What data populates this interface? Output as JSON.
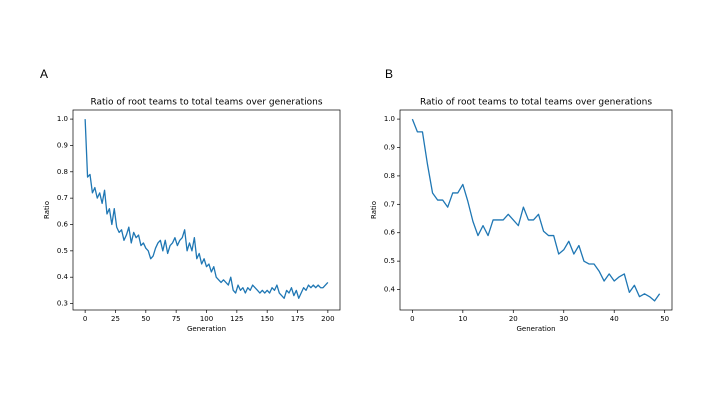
{
  "chart_data": [
    {
      "type": "line",
      "panel_label": "A",
      "title": "Ratio of root teams to total teams over generations",
      "x_label": "Generation",
      "y_label": "Ratio",
      "grid": false,
      "x": [
        0,
        2,
        4,
        6,
        8,
        10,
        12,
        14,
        16,
        18,
        20,
        22,
        24,
        26,
        28,
        30,
        32,
        34,
        36,
        38,
        40,
        42,
        44,
        46,
        48,
        50,
        52,
        54,
        56,
        58,
        60,
        62,
        64,
        66,
        68,
        70,
        72,
        74,
        76,
        78,
        80,
        82,
        84,
        86,
        88,
        90,
        92,
        94,
        96,
        98,
        100,
        102,
        104,
        106,
        108,
        110,
        112,
        114,
        116,
        118,
        120,
        122,
        124,
        126,
        128,
        130,
        132,
        134,
        136,
        138,
        140,
        142,
        144,
        146,
        148,
        150,
        152,
        154,
        156,
        158,
        160,
        162,
        164,
        166,
        168,
        170,
        172,
        174,
        176,
        178,
        180,
        182,
        184,
        186,
        188,
        190,
        192,
        194,
        196,
        198,
        200
      ],
      "series": [
        {
          "name": "Ratio",
          "color": "#1f77b4",
          "values": [
            1.0,
            0.78,
            0.79,
            0.72,
            0.74,
            0.7,
            0.72,
            0.68,
            0.73,
            0.64,
            0.66,
            0.6,
            0.66,
            0.59,
            0.57,
            0.58,
            0.54,
            0.56,
            0.59,
            0.53,
            0.57,
            0.55,
            0.56,
            0.52,
            0.53,
            0.51,
            0.5,
            0.47,
            0.48,
            0.51,
            0.53,
            0.54,
            0.5,
            0.54,
            0.49,
            0.52,
            0.53,
            0.55,
            0.52,
            0.54,
            0.55,
            0.58,
            0.5,
            0.53,
            0.5,
            0.55,
            0.47,
            0.49,
            0.45,
            0.47,
            0.44,
            0.45,
            0.42,
            0.44,
            0.4,
            0.39,
            0.38,
            0.39,
            0.38,
            0.37,
            0.4,
            0.35,
            0.34,
            0.37,
            0.35,
            0.36,
            0.34,
            0.36,
            0.35,
            0.37,
            0.36,
            0.35,
            0.34,
            0.35,
            0.34,
            0.35,
            0.34,
            0.36,
            0.35,
            0.37,
            0.34,
            0.33,
            0.32,
            0.35,
            0.34,
            0.36,
            0.33,
            0.35,
            0.32,
            0.34,
            0.36,
            0.35,
            0.37,
            0.36,
            0.37,
            0.36,
            0.37,
            0.36,
            0.36,
            0.37,
            0.38
          ]
        }
      ],
      "xlim": [
        -10,
        210
      ],
      "ylim": [
        0.2755,
        1.0345
      ],
      "xticks": [
        0,
        25,
        50,
        75,
        100,
        125,
        150,
        175,
        200
      ],
      "yticks": [
        0.3,
        0.4,
        0.5,
        0.6,
        0.7,
        0.8,
        0.9,
        {
          "value": 1,
          "label": "1.0"
        }
      ]
    },
    {
      "type": "line",
      "panel_label": "B",
      "title": "Ratio of root teams to total teams over generations",
      "x_label": "Generation",
      "y_label": "Ratio",
      "grid": false,
      "x": [
        0,
        1,
        2,
        3,
        4,
        5,
        6,
        7,
        8,
        9,
        10,
        11,
        12,
        13,
        14,
        15,
        16,
        17,
        18,
        19,
        20,
        21,
        22,
        23,
        24,
        25,
        26,
        27,
        28,
        29,
        30,
        31,
        32,
        33,
        34,
        35,
        36,
        37,
        38,
        39,
        40,
        41,
        42,
        43,
        44,
        45,
        46,
        47,
        48,
        49
      ],
      "series": [
        {
          "name": "Ratio",
          "color": "#1f77b4",
          "values": [
            1.0,
            0.955,
            0.955,
            0.84,
            0.74,
            0.715,
            0.715,
            0.69,
            0.74,
            0.74,
            0.77,
            0.71,
            0.64,
            0.59,
            0.625,
            0.59,
            0.645,
            0.645,
            0.645,
            0.665,
            0.645,
            0.625,
            0.69,
            0.645,
            0.645,
            0.665,
            0.605,
            0.59,
            0.59,
            0.525,
            0.54,
            0.57,
            0.525,
            0.555,
            0.5,
            0.49,
            0.49,
            0.465,
            0.43,
            0.455,
            0.43,
            0.445,
            0.455,
            0.39,
            0.415,
            0.375,
            0.385,
            0.375,
            0.36,
            0.385
          ]
        }
      ],
      "xlim": [
        -2.45,
        51.45
      ],
      "ylim": [
        0.328,
        1.032
      ],
      "xticks": [
        0,
        10,
        20,
        30,
        40,
        50
      ],
      "yticks": [
        0.4,
        0.5,
        0.6,
        0.7,
        0.8,
        0.9,
        {
          "value": 1,
          "label": "1.0"
        }
      ]
    }
  ]
}
